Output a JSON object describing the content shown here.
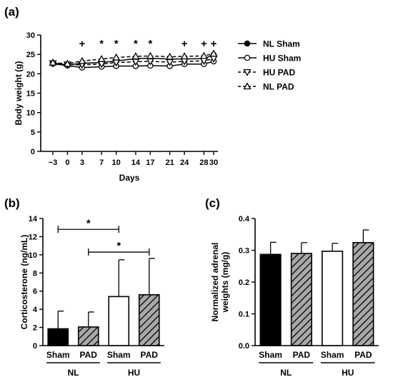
{
  "chart_data": [
    {
      "panel": "(a)",
      "type": "line",
      "ylabel": "Body weight (g)",
      "xlabel": "Days",
      "ylim": [
        0,
        30
      ],
      "yticks": [
        0,
        5,
        10,
        15,
        20,
        25,
        30
      ],
      "x": [
        -3,
        0,
        3,
        7,
        10,
        14,
        17,
        21,
        24,
        28,
        30
      ],
      "xtick_labels": [
        "−3",
        "0",
        "3",
        "7",
        "10",
        "14",
        "17",
        "21",
        "24",
        "28",
        "30"
      ],
      "grid": false,
      "legend_position": "right",
      "series": [
        {
          "name": "NL Sham",
          "marker": "filled-circle",
          "dash": "solid",
          "values": [
            22.8,
            22.3,
            22.7,
            22.9,
            23.3,
            23.9,
            24.0,
            23.8,
            23.8,
            23.9,
            24.9
          ]
        },
        {
          "name": "HU Sham",
          "marker": "open-circle",
          "dash": "solid",
          "values": [
            22.6,
            22.1,
            21.6,
            21.8,
            22.0,
            22.0,
            22.1,
            22.0,
            22.5,
            22.5,
            23.2
          ]
        },
        {
          "name": "HU PAD",
          "marker": "open-triangle-down",
          "dash": "dashed",
          "values": [
            22.7,
            22.4,
            22.3,
            22.5,
            22.9,
            23.1,
            23.2,
            23.0,
            23.2,
            23.3,
            23.9
          ]
        },
        {
          "name": "NL PAD",
          "marker": "open-triangle-up",
          "dash": "dashed",
          "values": [
            22.9,
            22.6,
            23.3,
            23.8,
            24.2,
            24.5,
            24.6,
            24.4,
            24.5,
            24.6,
            25.2
          ]
        }
      ],
      "annotations": [
        {
          "x": 3,
          "text": "+"
        },
        {
          "x": 7,
          "text": "*"
        },
        {
          "x": 10,
          "text": "*"
        },
        {
          "x": 14,
          "text": "*"
        },
        {
          "x": 17,
          "text": "*"
        },
        {
          "x": 24,
          "text": "+"
        },
        {
          "x": 28,
          "text": "+"
        },
        {
          "x": 30,
          "text": "+"
        }
      ]
    },
    {
      "panel": "(b)",
      "type": "bar",
      "ylabel": "Corticosterone (ng/mL)",
      "ylim": [
        0,
        14
      ],
      "yticks": [
        0,
        2,
        4,
        6,
        8,
        10,
        12,
        14
      ],
      "categories": [
        "Sham",
        "PAD",
        "Sham",
        "PAD"
      ],
      "groups": [
        {
          "label": "NL",
          "span": [
            0,
            1
          ]
        },
        {
          "label": "HU",
          "span": [
            2,
            3
          ]
        }
      ],
      "values": [
        1.85,
        2.05,
        5.4,
        5.6
      ],
      "errors": [
        1.95,
        1.65,
        4.05,
        4.0
      ],
      "fills": [
        "black",
        "hatch",
        "white",
        "hatch"
      ],
      "significance": [
        {
          "from": 0,
          "to": 2,
          "y": 12.8,
          "text": "*"
        },
        {
          "from": 1,
          "to": 3,
          "y": 10.3,
          "text": "*"
        }
      ]
    },
    {
      "panel": "(c)",
      "type": "bar",
      "ylabel": "Normalized adrenal weights (mg/g)",
      "ylabel_lines": [
        "Normalized adrenal",
        "weights (mg/g)"
      ],
      "ylim": [
        0,
        0.4
      ],
      "yticks": [
        0.0,
        0.1,
        0.2,
        0.3,
        0.4
      ],
      "ytick_labels": [
        "0.0",
        "0.1",
        "0.2",
        "0.3",
        "0.4"
      ],
      "categories": [
        "Sham",
        "PAD",
        "Sham",
        "PAD"
      ],
      "groups": [
        {
          "label": "NL",
          "span": [
            0,
            1
          ]
        },
        {
          "label": "HU",
          "span": [
            2,
            3
          ]
        }
      ],
      "values": [
        0.287,
        0.29,
        0.297,
        0.324
      ],
      "errors": [
        0.038,
        0.034,
        0.025,
        0.04
      ],
      "fills": [
        "black",
        "hatch",
        "white",
        "hatch"
      ]
    }
  ]
}
